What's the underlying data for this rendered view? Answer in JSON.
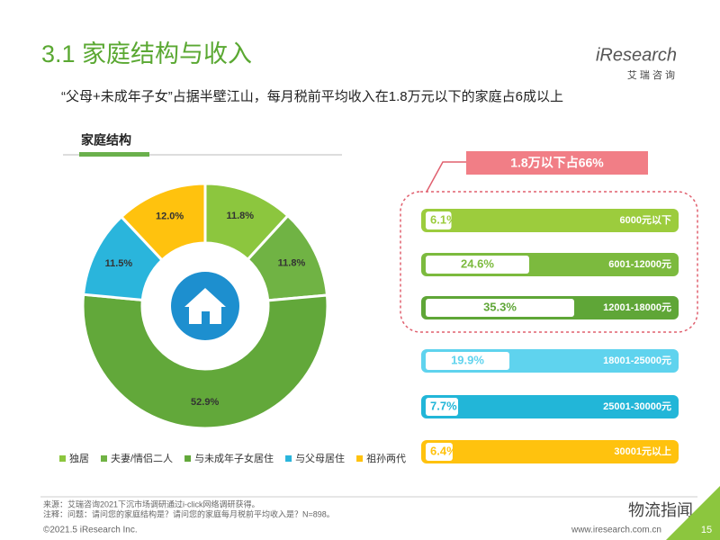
{
  "page": {
    "title": "3.1 家庭结构与收入",
    "subtitle": "“父母+未成年子女”占据半壁江山，每月税前平均收入在1.8万元以下的家庭占6成以上",
    "section": "家庭结构",
    "logo": "iResearch",
    "logo_sub": "艾 瑞 咨 询",
    "source": "来源：艾瑞咨询2021下沉市场调研通过i-click网络调研获得。",
    "note": "注释：问题：请问您的家庭结构是？请问您的家庭每月税前平均收入是？N=898。",
    "copyright": "©2021.5 iResearch Inc.",
    "website": "www.iresearch.com.cn",
    "page_number": "15",
    "watermark": "物流指闻"
  },
  "chart_data": [
    {
      "type": "pie",
      "categories": [
        "独居",
        "夫妻/情侣二人",
        "与未成年子女居住",
        "与父母居住",
        "祖孙两代"
      ],
      "values": [
        11.8,
        11.8,
        52.9,
        11.5,
        12.0
      ],
      "value_labels": [
        "11.8%",
        "11.8%",
        "52.9%",
        "11.5%",
        "12.0%"
      ],
      "colors": [
        "#8cc63e",
        "#70b344",
        "#62a83a",
        "#2ab5dc",
        "#ffc20e"
      ]
    },
    {
      "type": "bar",
      "annotation": "1.8万以下占66%",
      "categories": [
        "6000元以下",
        "6001-12000元",
        "12001-18000元",
        "18001-25000元",
        "25001-30000元",
        "30001元以上"
      ],
      "values": [
        6.1,
        24.6,
        35.3,
        19.9,
        7.7,
        6.4
      ],
      "value_labels": [
        "6.1%",
        "24.6%",
        "35.3%",
        "19.9%",
        "7.7%",
        "6.4%"
      ],
      "colors": [
        "#9ccc3d",
        "#7cba3e",
        "#5fa637",
        "#5fd3ee",
        "#22b6d8",
        "#ffc20e"
      ]
    }
  ]
}
